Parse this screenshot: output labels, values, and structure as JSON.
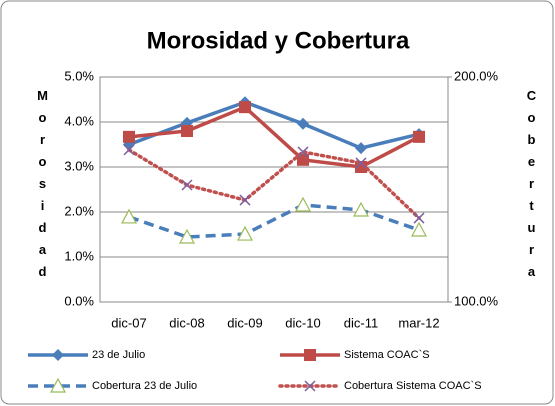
{
  "chart_data": {
    "type": "line",
    "title": "Morosidad y Cobertura",
    "y_label": "Morosidad",
    "y2_label": "Cobertura",
    "categories": [
      "dic-07",
      "dic-08",
      "dic-09",
      "dic-10",
      "dic-11",
      "mar-12"
    ],
    "ylim": [
      0,
      5
    ],
    "yticks": [
      {
        "value": 0,
        "label": "0.0%"
      },
      {
        "value": 1,
        "label": "1.0%"
      },
      {
        "value": 2,
        "label": "2.0%"
      },
      {
        "value": 3,
        "label": "3.0%"
      },
      {
        "value": 4,
        "label": "4.0%"
      },
      {
        "value": 5,
        "label": "5.0%"
      }
    ],
    "y2lim": [
      100,
      200
    ],
    "y2ticks": [
      {
        "value": 100,
        "label": "100.0%"
      },
      {
        "value": 200,
        "label": "200.0%"
      }
    ],
    "grid": true,
    "series": [
      {
        "name": "23 de Julio",
        "color": "#4a7ebb",
        "marker": "diamond",
        "dash": "solid",
        "values": [
          3.5,
          3.98,
          4.44,
          3.96,
          3.42,
          3.73
        ]
      },
      {
        "name": "Sistema COAC`S",
        "color": "#be4b48",
        "marker": "square",
        "dash": "solid",
        "values": [
          3.67,
          3.8,
          4.33,
          3.16,
          3.0,
          3.67
        ]
      },
      {
        "name": "Cobertura  23 de Julio",
        "color": "#4a7ebb",
        "marker": "triangle",
        "dash": "dashed",
        "axis": "y2",
        "values": [
          137.8,
          128.9,
          130.2,
          143.1,
          140.9,
          132
        ]
      },
      {
        "name": "Cobertura Sistema COAC`S",
        "color": "#c0504d",
        "marker": "x",
        "dash": "dotted",
        "axis": "y2",
        "values": [
          167.6,
          152,
          145.3,
          166.7,
          161.8,
          137.3
        ]
      }
    ]
  }
}
